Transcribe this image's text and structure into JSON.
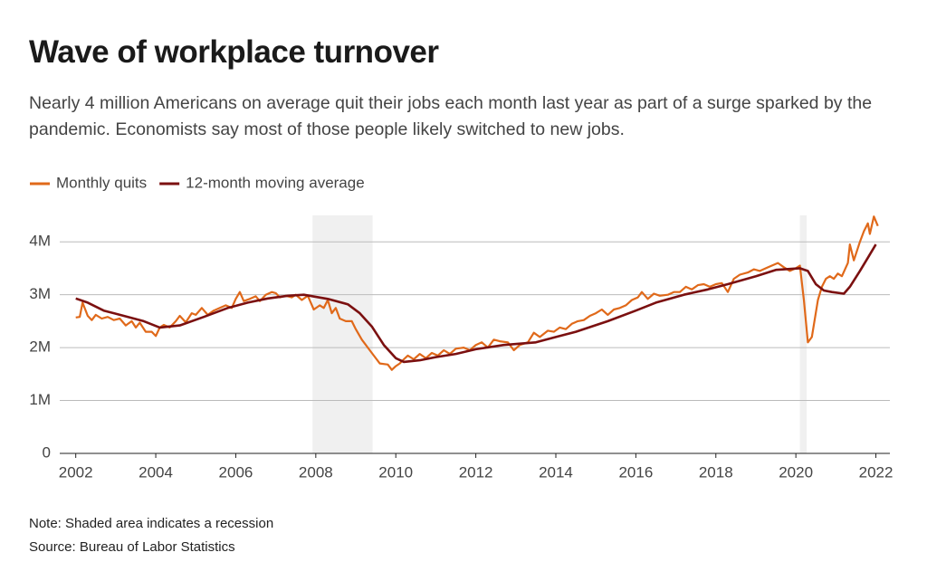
{
  "chart_data": {
    "type": "line",
    "title": "Wave of workplace turnover",
    "subtitle": "Nearly 4 million Americans on average quit their jobs each month last year as part of a surge sparked by the pandemic. Economists say most of those people likely switched to new jobs.",
    "notes": [
      "Note: Shaded area indicates a recession",
      "Source: Bureau of Labor Statistics"
    ],
    "xlim": [
      2001.6,
      2022.35
    ],
    "xticks": [
      2002,
      2004,
      2006,
      2008,
      2010,
      2012,
      2014,
      2016,
      2018,
      2020,
      2022
    ],
    "ylim": [
      0,
      4.5
    ],
    "yticks": [
      0,
      {
        "value": 1,
        "label": "1M"
      },
      {
        "value": 2,
        "label": "2M"
      },
      {
        "value": 3,
        "label": "3M"
      },
      {
        "value": 4,
        "label": "4M"
      }
    ],
    "grid": true,
    "legend": "top-left",
    "recessions": [
      [
        2007.92,
        2009.42
      ],
      [
        2020.1,
        2020.27
      ]
    ],
    "series": [
      {
        "name": "Monthly quits",
        "color": "#e0691a",
        "x": [
          2002.0,
          2002.1,
          2002.17,
          2002.3,
          2002.4,
          2002.5,
          2002.65,
          2002.8,
          2002.95,
          2003.1,
          2003.25,
          2003.4,
          2003.5,
          2003.6,
          2003.75,
          2003.9,
          2004.0,
          2004.1,
          2004.2,
          2004.35,
          2004.5,
          2004.6,
          2004.75,
          2004.9,
          2005.0,
          2005.15,
          2005.3,
          2005.45,
          2005.6,
          2005.75,
          2005.9,
          2006.0,
          2006.1,
          2006.2,
          2006.35,
          2006.5,
          2006.6,
          2006.75,
          2006.9,
          2007.0,
          2007.1,
          2007.25,
          2007.4,
          2007.5,
          2007.65,
          2007.8,
          2007.95,
          2008.1,
          2008.2,
          2008.3,
          2008.4,
          2008.5,
          2008.6,
          2008.75,
          2008.9,
          2009.0,
          2009.15,
          2009.3,
          2009.45,
          2009.6,
          2009.8,
          2009.9,
          2010.0,
          2010.1,
          2010.2,
          2010.3,
          2010.45,
          2010.6,
          2010.75,
          2010.9,
          2011.05,
          2011.2,
          2011.35,
          2011.5,
          2011.7,
          2011.85,
          2012.0,
          2012.15,
          2012.3,
          2012.45,
          2012.6,
          2012.8,
          2012.95,
          2013.1,
          2013.3,
          2013.45,
          2013.6,
          2013.8,
          2013.95,
          2014.1,
          2014.25,
          2014.4,
          2014.55,
          2014.7,
          2014.85,
          2015.0,
          2015.15,
          2015.3,
          2015.45,
          2015.6,
          2015.75,
          2015.9,
          2016.05,
          2016.15,
          2016.3,
          2016.45,
          2016.6,
          2016.8,
          2016.95,
          2017.1,
          2017.25,
          2017.4,
          2017.55,
          2017.7,
          2017.85,
          2018.0,
          2018.15,
          2018.3,
          2018.45,
          2018.6,
          2018.8,
          2018.95,
          2019.1,
          2019.25,
          2019.4,
          2019.55,
          2019.7,
          2019.85,
          2020.0,
          2020.1,
          2020.2,
          2020.3,
          2020.4,
          2020.55,
          2020.65,
          2020.75,
          2020.85,
          2020.95,
          2021.05,
          2021.15,
          2021.3,
          2021.35,
          2021.45,
          2021.6,
          2021.7,
          2021.8,
          2021.85,
          2021.95,
          2022.05
        ],
        "values": [
          2.57,
          2.58,
          2.85,
          2.6,
          2.52,
          2.62,
          2.55,
          2.58,
          2.52,
          2.55,
          2.42,
          2.5,
          2.38,
          2.47,
          2.3,
          2.3,
          2.22,
          2.38,
          2.43,
          2.38,
          2.5,
          2.6,
          2.48,
          2.65,
          2.62,
          2.75,
          2.62,
          2.7,
          2.75,
          2.8,
          2.75,
          2.92,
          3.05,
          2.88,
          2.92,
          2.97,
          2.88,
          3.0,
          3.05,
          3.03,
          2.95,
          2.98,
          2.95,
          3.0,
          2.9,
          2.98,
          2.72,
          2.8,
          2.75,
          2.9,
          2.65,
          2.75,
          2.55,
          2.5,
          2.5,
          2.35,
          2.15,
          2.0,
          1.85,
          1.7,
          1.68,
          1.58,
          1.65,
          1.7,
          1.78,
          1.85,
          1.78,
          1.88,
          1.8,
          1.9,
          1.85,
          1.95,
          1.88,
          1.98,
          2.0,
          1.95,
          2.05,
          2.1,
          2.0,
          2.15,
          2.12,
          2.1,
          1.95,
          2.05,
          2.1,
          2.28,
          2.2,
          2.32,
          2.3,
          2.38,
          2.35,
          2.45,
          2.5,
          2.52,
          2.6,
          2.65,
          2.72,
          2.62,
          2.72,
          2.75,
          2.8,
          2.9,
          2.95,
          3.05,
          2.92,
          3.02,
          2.98,
          3.0,
          3.05,
          3.05,
          3.15,
          3.1,
          3.18,
          3.2,
          3.15,
          3.2,
          3.22,
          3.05,
          3.3,
          3.38,
          3.42,
          3.48,
          3.45,
          3.5,
          3.55,
          3.6,
          3.52,
          3.45,
          3.5,
          3.55,
          2.9,
          2.1,
          2.2,
          2.9,
          3.15,
          3.3,
          3.35,
          3.3,
          3.4,
          3.35,
          3.6,
          3.95,
          3.65,
          4.0,
          4.2,
          4.35,
          4.15,
          4.48,
          4.3
        ]
      },
      {
        "name": "12-month moving average",
        "color": "#7b1010",
        "x": [
          2002.0,
          2002.3,
          2002.7,
          2003.2,
          2003.7,
          2004.1,
          2004.6,
          2005.2,
          2005.8,
          2006.3,
          2006.8,
          2007.3,
          2007.7,
          2008.3,
          2008.8,
          2009.1,
          2009.4,
          2009.7,
          2010.0,
          2010.2,
          2010.6,
          2011.0,
          2011.5,
          2012.0,
          2012.7,
          2013.5,
          2014.0,
          2014.5,
          2015.3,
          2016.0,
          2016.5,
          2017.2,
          2017.8,
          2018.3,
          2019.0,
          2019.5,
          2020.1,
          2020.3,
          2020.5,
          2020.7,
          2020.9,
          2021.2,
          2021.35,
          2021.6,
          2021.8,
          2022.0
        ],
        "values": [
          2.93,
          2.85,
          2.7,
          2.6,
          2.5,
          2.38,
          2.42,
          2.58,
          2.75,
          2.85,
          2.93,
          2.98,
          3.0,
          2.92,
          2.82,
          2.65,
          2.4,
          2.05,
          1.8,
          1.73,
          1.76,
          1.82,
          1.88,
          1.97,
          2.05,
          2.1,
          2.2,
          2.3,
          2.5,
          2.7,
          2.85,
          3.0,
          3.1,
          3.2,
          3.35,
          3.47,
          3.5,
          3.45,
          3.2,
          3.08,
          3.05,
          3.02,
          3.15,
          3.45,
          3.7,
          3.95
        ]
      }
    ]
  }
}
